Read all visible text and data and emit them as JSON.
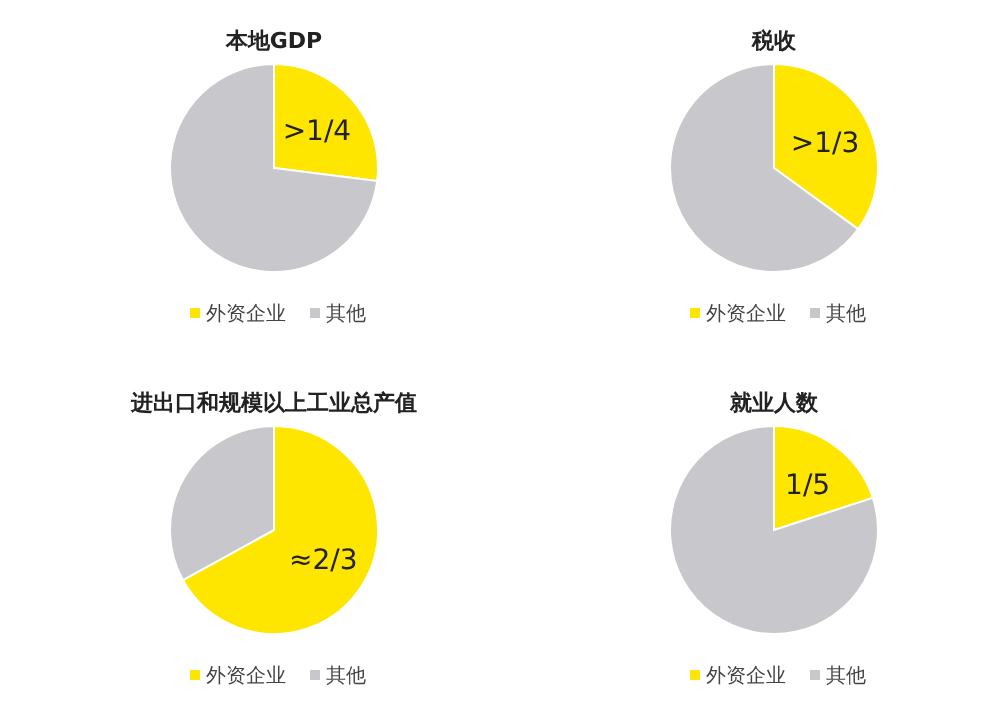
{
  "chart_data": [
    {
      "type": "pie",
      "title": "本地GDP",
      "categories": [
        "外资企业",
        "其他"
      ],
      "values": [
        27,
        73
      ],
      "colors": [
        "#ffe600",
        "#c8c8cc"
      ],
      "annotations": [
        ">1/4"
      ],
      "legend": "bottom"
    },
    {
      "type": "pie",
      "title": "税收",
      "categories": [
        "外资企业",
        "其他"
      ],
      "values": [
        35,
        65
      ],
      "colors": [
        "#ffe600",
        "#c8c8cc"
      ],
      "annotations": [
        ">1/3"
      ],
      "legend": "bottom"
    },
    {
      "type": "pie",
      "title": "进出口和规模以上工业总产值",
      "categories": [
        "外资企业",
        "其他"
      ],
      "values": [
        67,
        33
      ],
      "colors": [
        "#ffe600",
        "#c8c8cc"
      ],
      "annotations": [
        "≈2/3"
      ],
      "legend": "bottom"
    },
    {
      "type": "pie",
      "title": "就业人数",
      "categories": [
        "外资企业",
        "其他"
      ],
      "values": [
        20,
        80
      ],
      "colors": [
        "#ffe600",
        "#c8c8cc"
      ],
      "annotations": [
        "1/5"
      ],
      "legend": "bottom"
    }
  ]
}
